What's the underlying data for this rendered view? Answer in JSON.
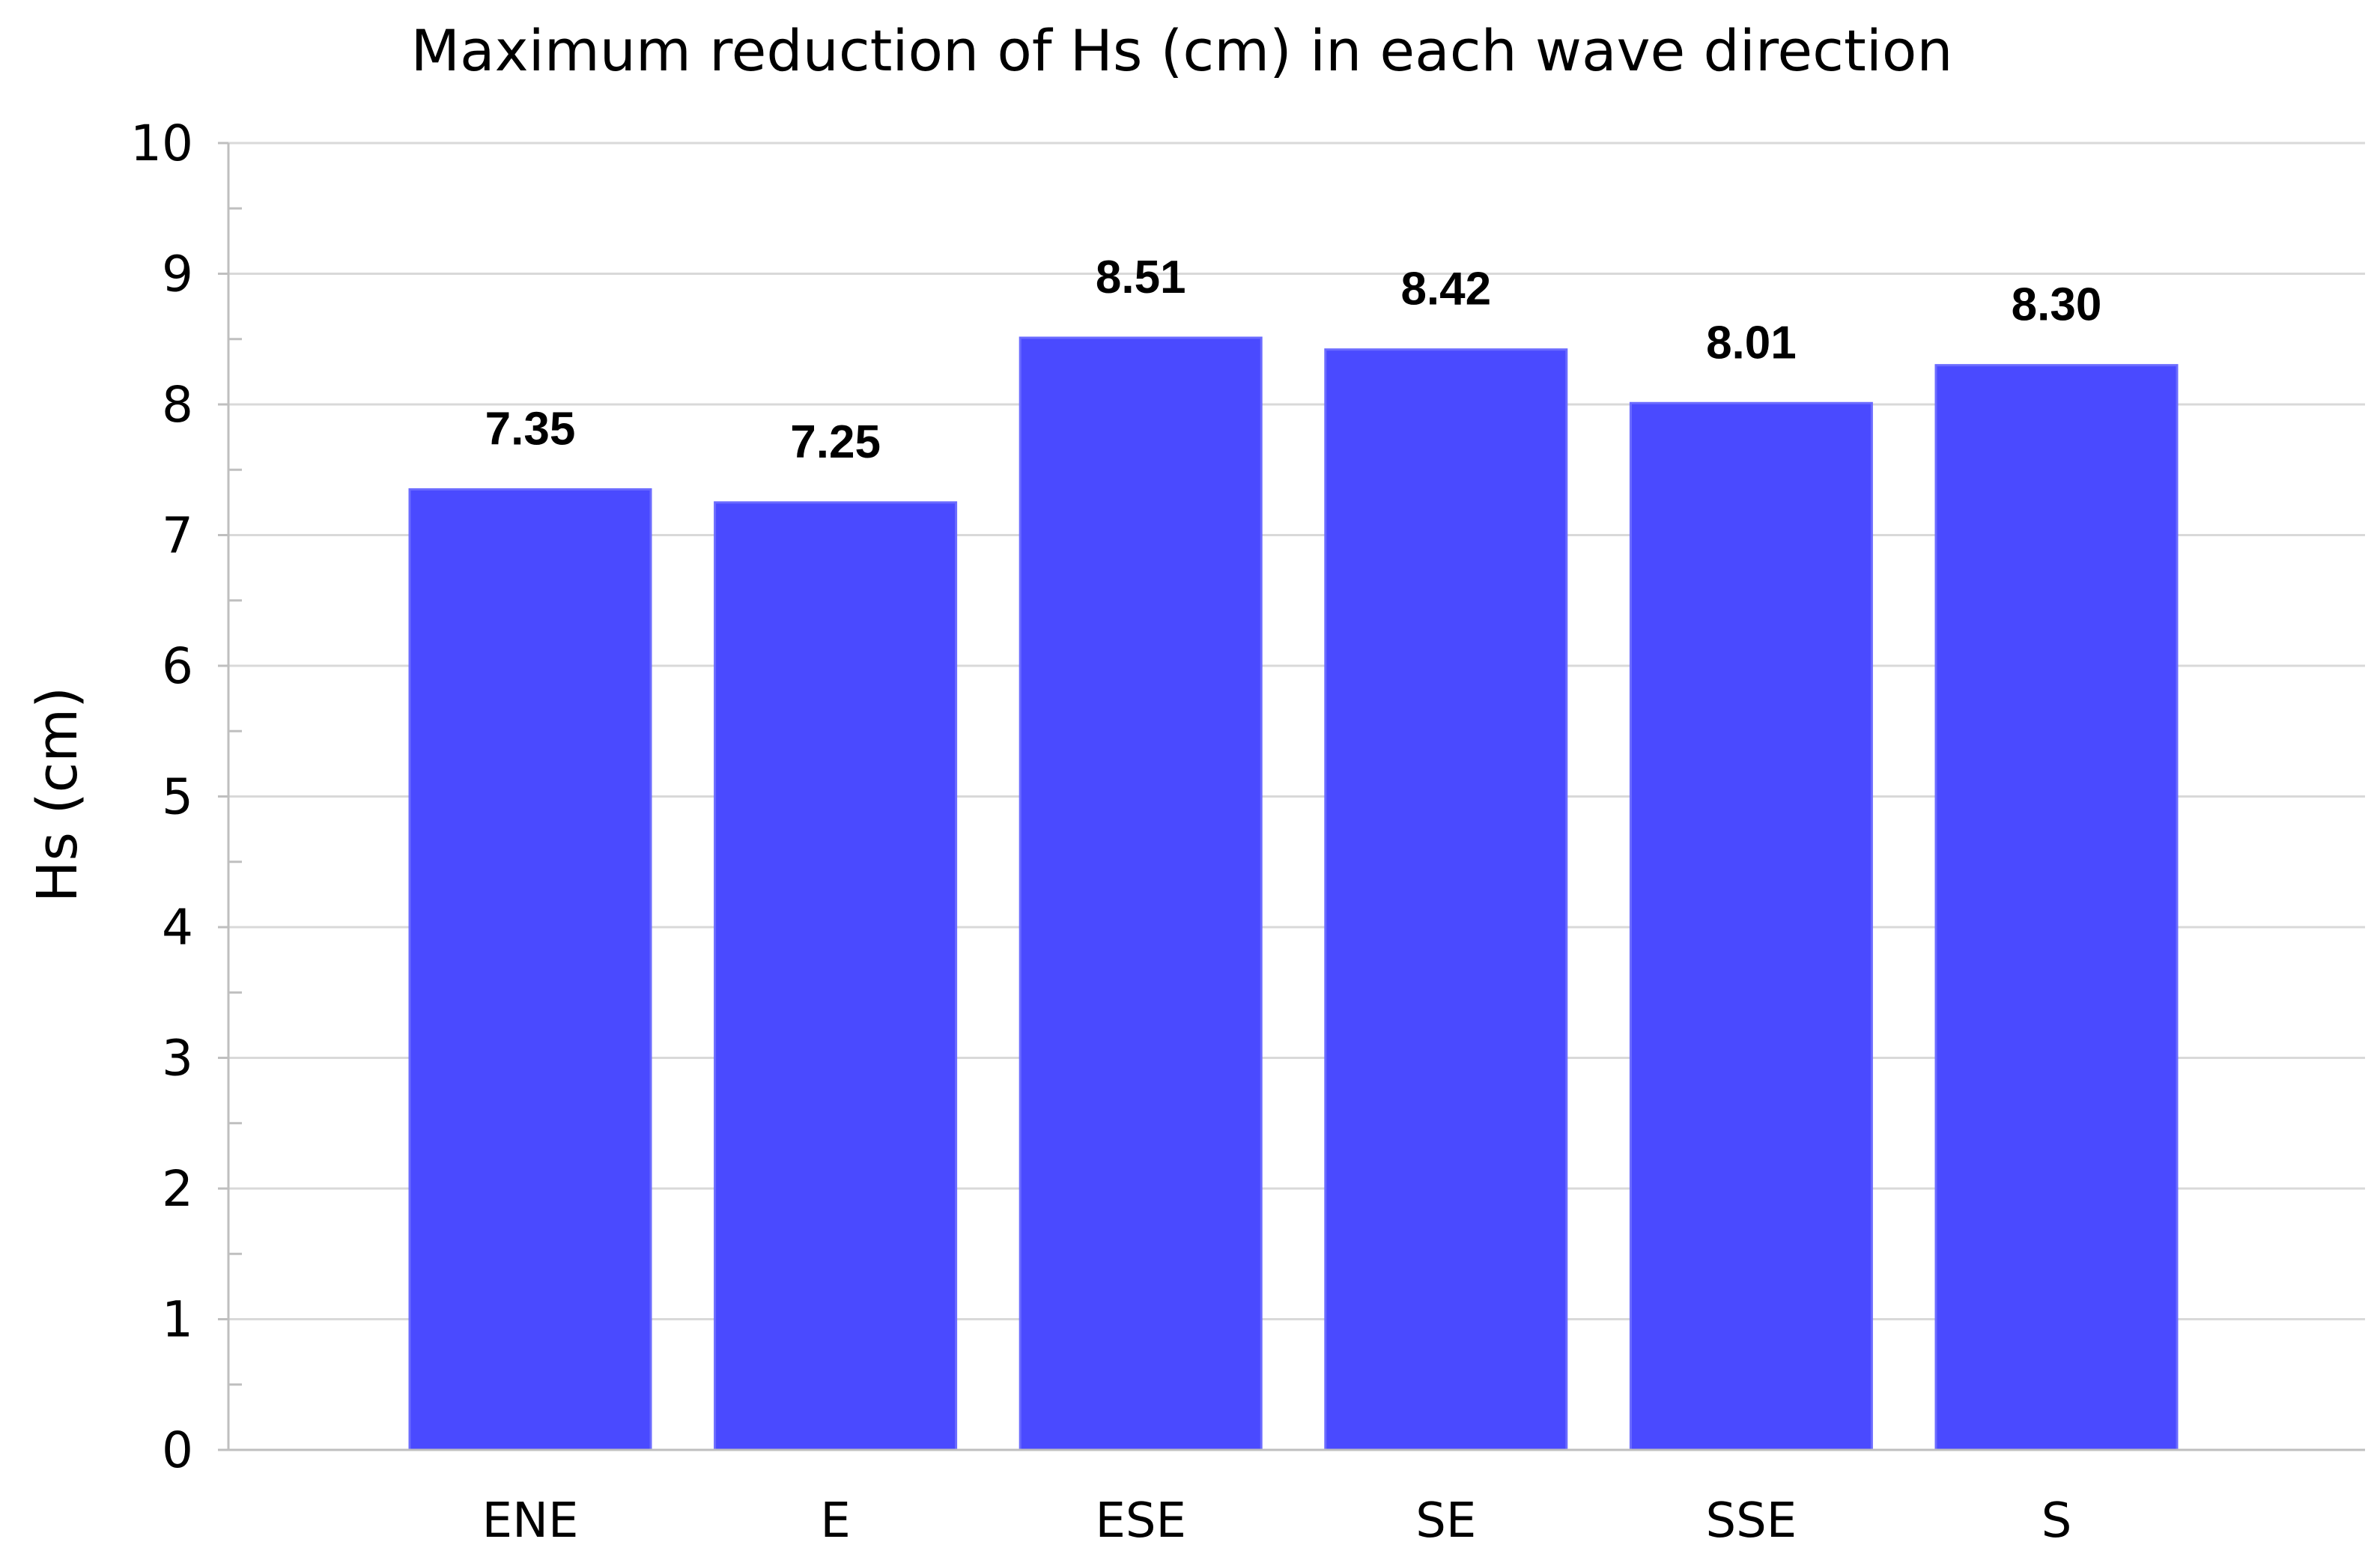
{
  "chart_data": {
    "type": "bar",
    "title": "Maximum reduction of Hs (cm) in each wave direction",
    "xlabel": "",
    "ylabel": "Hs (cm)",
    "categories": [
      "ENE",
      "E",
      "ESE",
      "SE",
      "SSE",
      "S"
    ],
    "values": [
      7.35,
      7.25,
      8.51,
      8.42,
      8.01,
      8.3
    ],
    "value_labels": [
      "7.35",
      "7.25",
      "8.51",
      "8.42",
      "8.01",
      "8.30"
    ],
    "ylim": [
      0,
      10
    ],
    "yticks": [
      0,
      1,
      2,
      3,
      4,
      5,
      6,
      7,
      8,
      9,
      10
    ],
    "grid": true,
    "legend": "none",
    "bar_color": "#4a4aff",
    "bar_edge_color": "#6b6bff",
    "grid_color": "#d9d9d9",
    "axis_color": "#bfbfbf"
  }
}
